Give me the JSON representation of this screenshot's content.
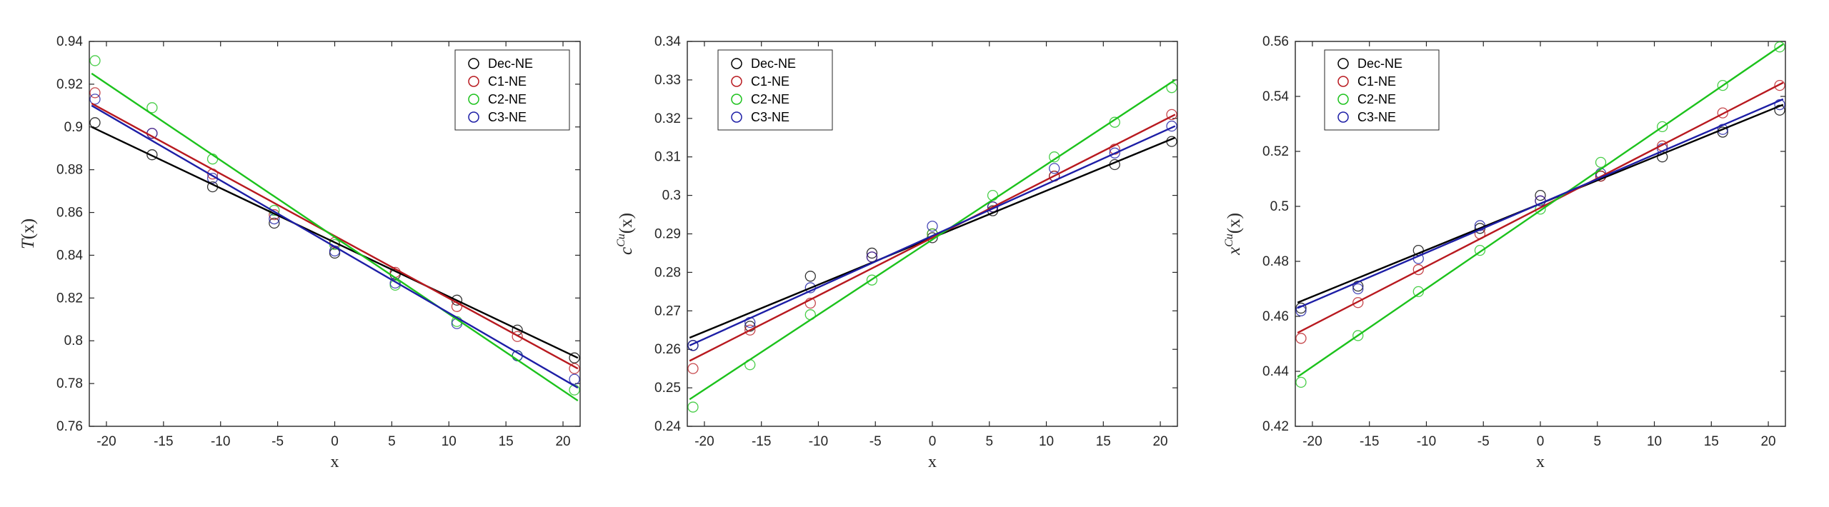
{
  "figure": {
    "series_colors": {
      "Dec-NE": "#000000",
      "C1-NE": "#b8191f",
      "C2-NE": "#1cc21c",
      "C3-NE": "#1d1ea6"
    }
  },
  "chart_data": [
    {
      "type": "scatter",
      "title": "",
      "xlabel": "x",
      "ylabel": "T(x)",
      "xlim": [
        -21.5,
        21.5
      ],
      "ylim": [
        0.76,
        0.94
      ],
      "xticks": [
        -20,
        -15,
        -10,
        -5,
        0,
        5,
        10,
        15,
        20
      ],
      "yticks": [
        0.76,
        0.78,
        0.8,
        0.82,
        0.84,
        0.86,
        0.88,
        0.9,
        0.92,
        0.94
      ],
      "ytick_labels": [
        "0.76",
        "0.78",
        "0.8",
        "0.82",
        "0.84",
        "0.86",
        "0.88",
        "0.9",
        "0.92",
        "0.94"
      ],
      "grid": false,
      "legend": "top-right",
      "series": [
        {
          "name": "Dec-NE",
          "color": "#000000",
          "x": [
            -21,
            -16,
            -10.7,
            -5.3,
            0,
            5.3,
            10.7,
            16,
            21
          ],
          "y": [
            0.902,
            0.887,
            0.872,
            0.855,
            0.841,
            0.831,
            0.819,
            0.805,
            0.792
          ],
          "fit": [
            [
              -21.3,
              0.9
            ],
            [
              21.3,
              0.792
            ]
          ]
        },
        {
          "name": "C1-NE",
          "color": "#b8191f",
          "x": [
            -21,
            -16,
            -10.7,
            -5.3,
            0,
            5.3,
            10.7,
            16,
            21
          ],
          "y": [
            0.916,
            0.897,
            0.878,
            0.859,
            0.846,
            0.832,
            0.816,
            0.802,
            0.787
          ],
          "fit": [
            [
              -21.3,
              0.911
            ],
            [
              21.3,
              0.787
            ]
          ]
        },
        {
          "name": "C2-NE",
          "color": "#1cc21c",
          "x": [
            -21,
            -16,
            -10.7,
            -5.3,
            0,
            5.3,
            10.7,
            16,
            21
          ],
          "y": [
            0.931,
            0.909,
            0.885,
            0.861,
            0.845,
            0.826,
            0.809,
            0.793,
            0.777
          ],
          "fit": [
            [
              -21.3,
              0.925
            ],
            [
              21.3,
              0.772
            ]
          ]
        },
        {
          "name": "C3-NE",
          "color": "#1d1ea6",
          "x": [
            -21,
            -16,
            -10.7,
            -5.3,
            0,
            5.3,
            10.7,
            16,
            21
          ],
          "y": [
            0.913,
            0.897,
            0.876,
            0.857,
            0.842,
            0.827,
            0.808,
            0.793,
            0.782
          ],
          "fit": [
            [
              -21.3,
              0.91
            ],
            [
              21.3,
              0.778
            ]
          ]
        }
      ]
    },
    {
      "type": "scatter",
      "title": "",
      "xlabel": "x",
      "ylabel": "c^Cu(x)",
      "xlim": [
        -21.5,
        21.5
      ],
      "ylim": [
        0.24,
        0.34
      ],
      "xticks": [
        -20,
        -15,
        -10,
        -5,
        0,
        5,
        10,
        15,
        20
      ],
      "yticks": [
        0.24,
        0.25,
        0.26,
        0.27,
        0.28,
        0.29,
        0.3,
        0.31,
        0.32,
        0.33,
        0.34
      ],
      "ytick_labels": [
        "0.24",
        "0.25",
        "0.26",
        "0.27",
        "0.28",
        "0.29",
        "0.3",
        "0.31",
        "0.32",
        "0.33",
        "0.34"
      ],
      "grid": false,
      "legend": "top-left",
      "series": [
        {
          "name": "Dec-NE",
          "color": "#000000",
          "x": [
            -21,
            -16,
            -10.7,
            -5.3,
            0,
            5.3,
            10.7,
            16,
            21
          ],
          "y": [
            0.261,
            0.266,
            0.279,
            0.285,
            0.289,
            0.296,
            0.305,
            0.308,
            0.314
          ],
          "fit": [
            [
              -21.3,
              0.263
            ],
            [
              21.3,
              0.315
            ]
          ]
        },
        {
          "name": "C1-NE",
          "color": "#b8191f",
          "x": [
            -21,
            -16,
            -10.7,
            -5.3,
            0,
            5.3,
            10.7,
            16,
            21
          ],
          "y": [
            0.255,
            0.265,
            0.272,
            0.284,
            0.29,
            0.297,
            0.305,
            0.312,
            0.321
          ],
          "fit": [
            [
              -21.3,
              0.257
            ],
            [
              21.3,
              0.321
            ]
          ]
        },
        {
          "name": "C2-NE",
          "color": "#1cc21c",
          "x": [
            -21,
            -16,
            -10.7,
            -5.3,
            0,
            5.3,
            10.7,
            16,
            21
          ],
          "y": [
            0.245,
            0.256,
            0.269,
            0.278,
            0.29,
            0.3,
            0.31,
            0.319,
            0.328
          ],
          "fit": [
            [
              -21.3,
              0.247
            ],
            [
              21.3,
              0.33
            ]
          ]
        },
        {
          "name": "C3-NE",
          "color": "#1d1ea6",
          "x": [
            -21,
            -16,
            -10.7,
            -5.3,
            0,
            5.3,
            10.7,
            16,
            21
          ],
          "y": [
            0.261,
            0.267,
            0.276,
            0.284,
            0.292,
            0.297,
            0.307,
            0.311,
            0.318
          ],
          "fit": [
            [
              -21.3,
              0.261
            ],
            [
              21.3,
              0.318
            ]
          ]
        }
      ]
    },
    {
      "type": "scatter",
      "title": "",
      "xlabel": "x",
      "ylabel": "x^Cu(x)",
      "xlim": [
        -21.5,
        21.5
      ],
      "ylim": [
        0.42,
        0.56
      ],
      "xticks": [
        -20,
        -15,
        -10,
        -5,
        0,
        5,
        10,
        15,
        20
      ],
      "yticks": [
        0.42,
        0.44,
        0.46,
        0.48,
        0.5,
        0.52,
        0.54,
        0.56
      ],
      "ytick_labels": [
        "0.42",
        "0.44",
        "0.46",
        "0.48",
        "0.5",
        "0.52",
        "0.54",
        "0.56"
      ],
      "grid": false,
      "legend": "top-left",
      "series": [
        {
          "name": "Dec-NE",
          "color": "#000000",
          "x": [
            -21,
            -16,
            -10.7,
            -5.3,
            0,
            5.3,
            10.7,
            16,
            21
          ],
          "y": [
            0.463,
            0.471,
            0.484,
            0.492,
            0.504,
            0.511,
            0.518,
            0.527,
            0.535
          ],
          "fit": [
            [
              -21.3,
              0.465
            ],
            [
              21.3,
              0.537
            ]
          ]
        },
        {
          "name": "C1-NE",
          "color": "#b8191f",
          "x": [
            -21,
            -16,
            -10.7,
            -5.3,
            0,
            5.3,
            10.7,
            16,
            21
          ],
          "y": [
            0.452,
            0.465,
            0.477,
            0.49,
            0.502,
            0.511,
            0.522,
            0.534,
            0.544
          ],
          "fit": [
            [
              -21.3,
              0.454
            ],
            [
              21.3,
              0.545
            ]
          ]
        },
        {
          "name": "C2-NE",
          "color": "#1cc21c",
          "x": [
            -21,
            -16,
            -10.7,
            -5.3,
            0,
            5.3,
            10.7,
            16,
            21
          ],
          "y": [
            0.436,
            0.453,
            0.469,
            0.484,
            0.499,
            0.516,
            0.529,
            0.544,
            0.558
          ],
          "fit": [
            [
              -21.3,
              0.438
            ],
            [
              21.3,
              0.559
            ]
          ]
        },
        {
          "name": "C3-NE",
          "color": "#1d1ea6",
          "x": [
            -21,
            -16,
            -10.7,
            -5.3,
            0,
            5.3,
            10.7,
            16,
            21
          ],
          "y": [
            0.462,
            0.47,
            0.481,
            0.493,
            0.502,
            0.512,
            0.521,
            0.528,
            0.537
          ],
          "fit": [
            [
              -21.3,
              0.463
            ],
            [
              21.3,
              0.539
            ]
          ]
        }
      ]
    }
  ]
}
